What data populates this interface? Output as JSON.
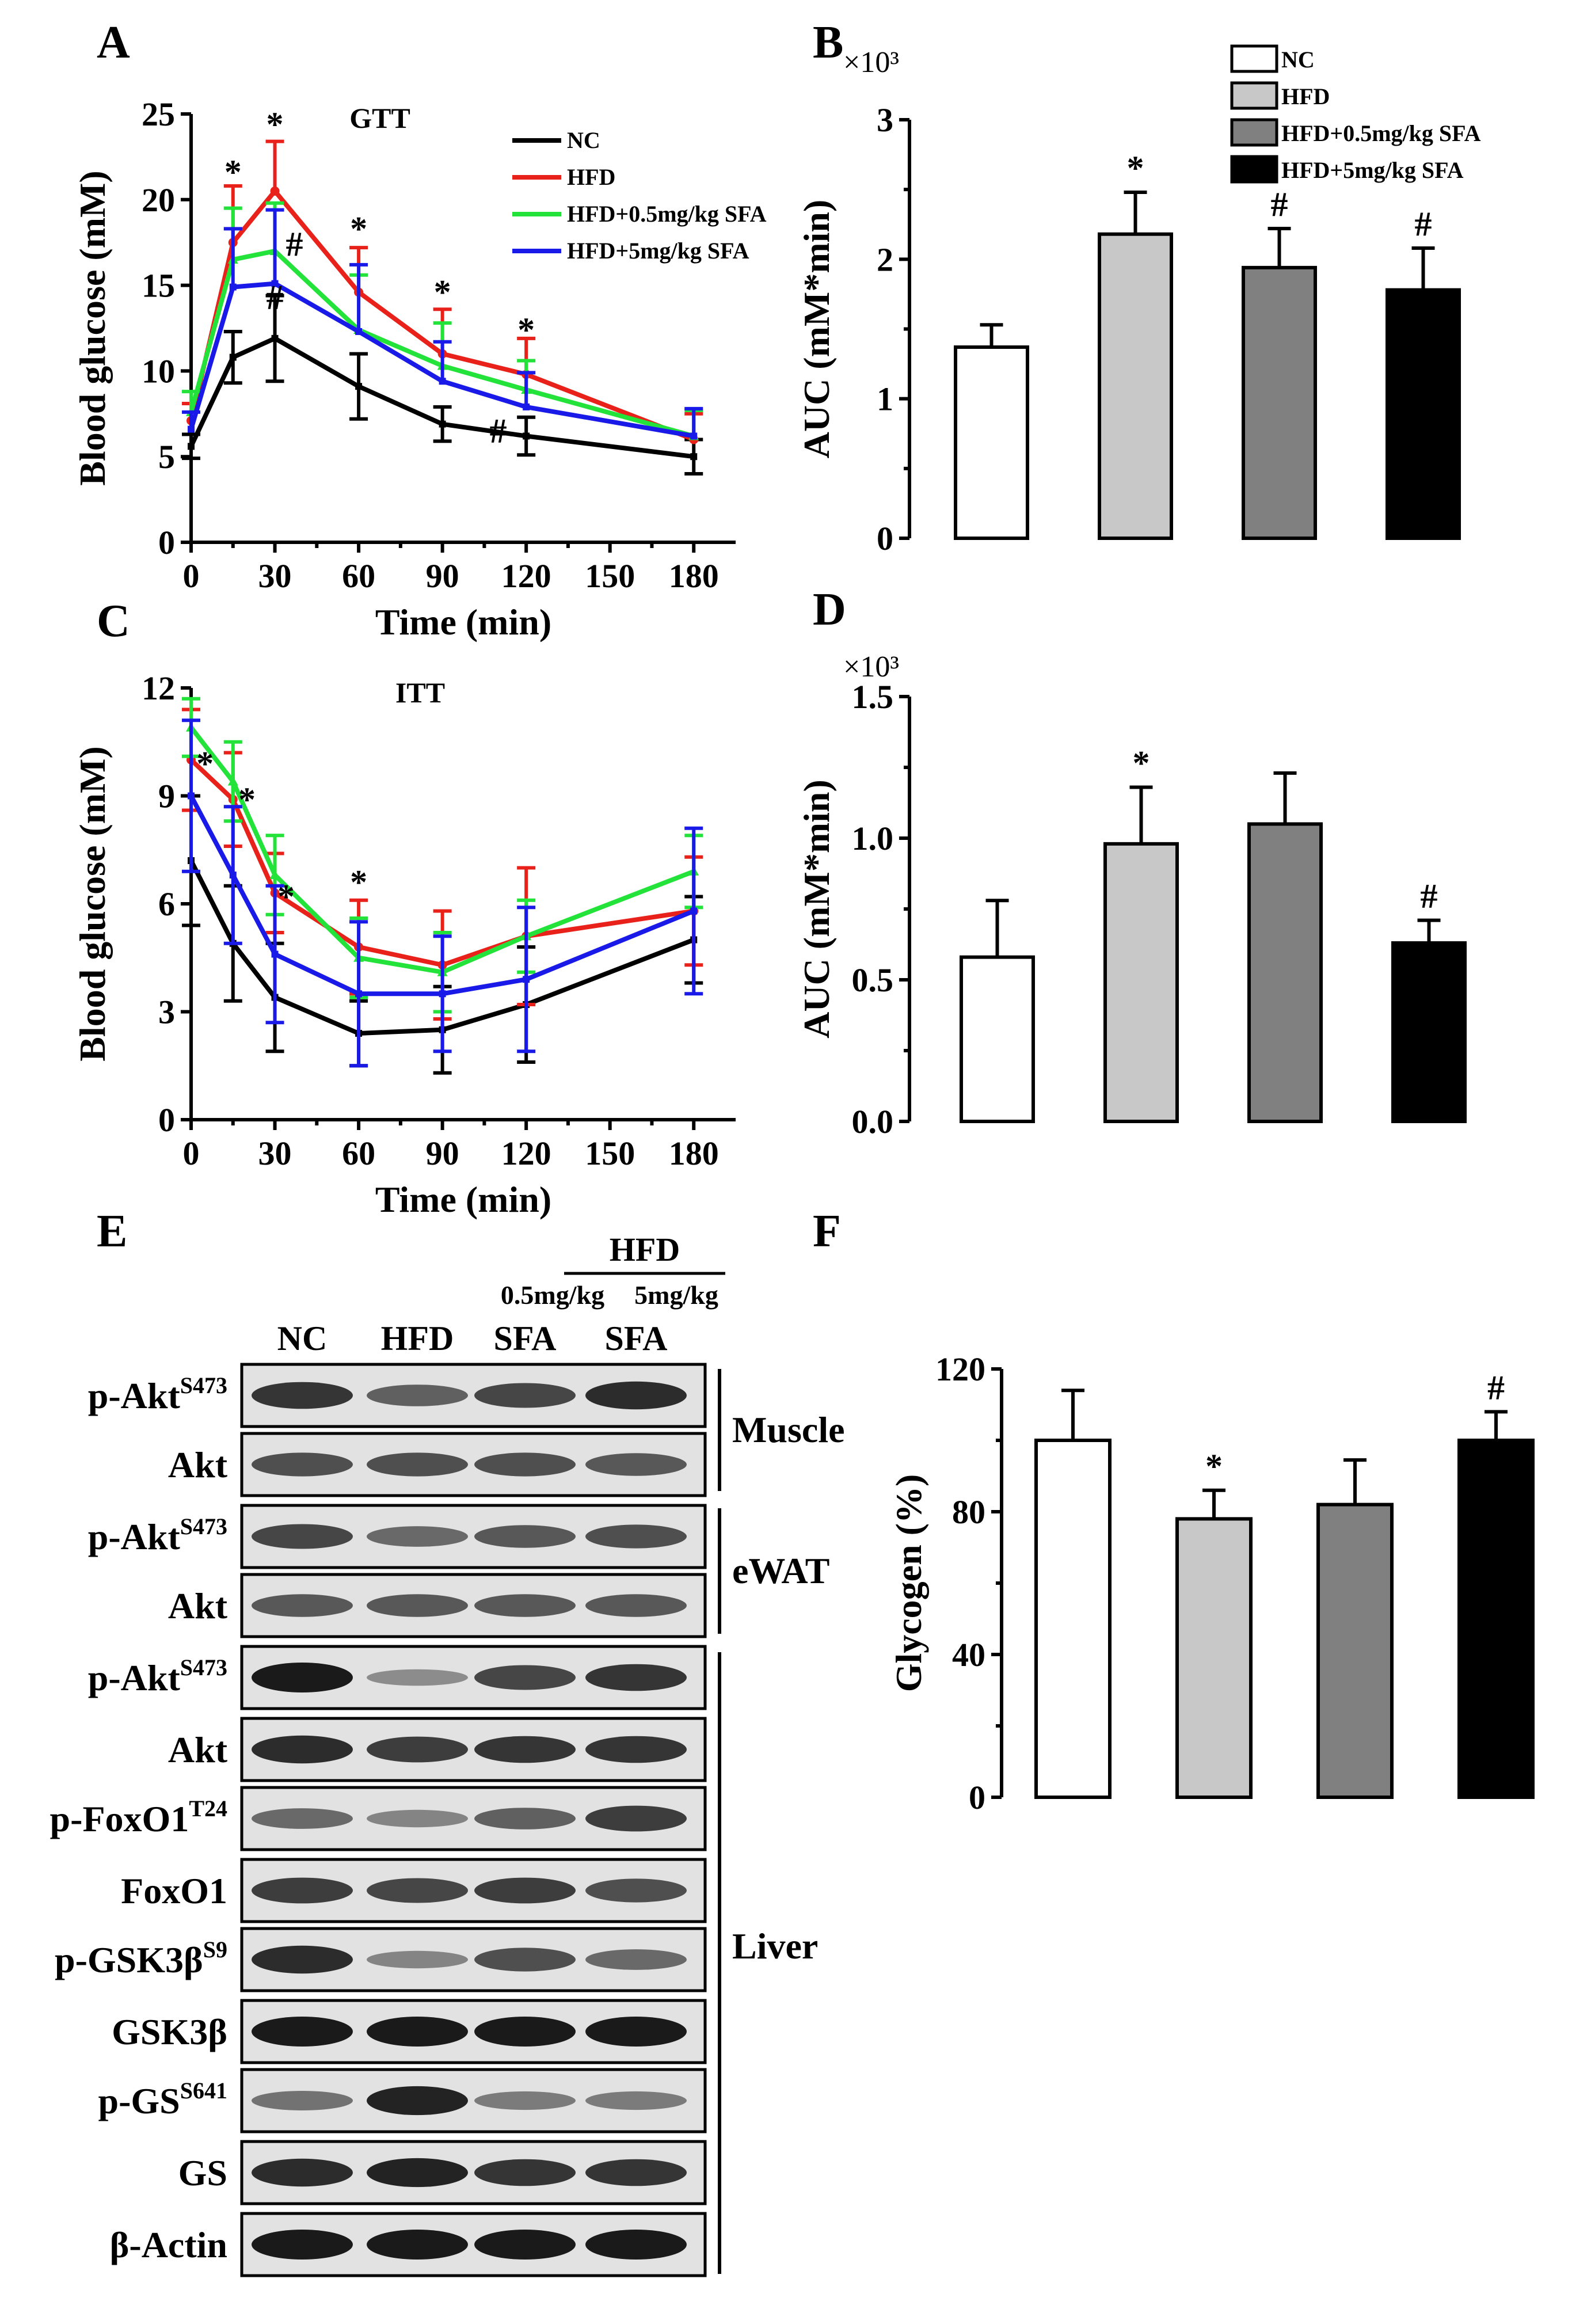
{
  "colors": {
    "NC": "#000000",
    "HFD": "#e8221b",
    "HFD_low": "#23e23a",
    "HFD_high": "#1a1ae8",
    "bar_NC": "#ffffff",
    "bar_HFD": "#c8c8c8",
    "bar_low": "#808080",
    "bar_high": "#000000"
  },
  "panels": {
    "A": {
      "letter": "A",
      "title": "GTT"
    },
    "B": {
      "letter": "B",
      "exponent": "×10³"
    },
    "C": {
      "letter": "C",
      "title": "ITT"
    },
    "D": {
      "letter": "D",
      "exponent": "×10³"
    },
    "E": {
      "letter": "E"
    },
    "F": {
      "letter": "F"
    }
  },
  "chart_data": [
    {
      "id": "A",
      "type": "line",
      "title": "GTT",
      "xlabel": "Time (min)",
      "ylabel": "Blood glucose (mM)",
      "xlim": [
        0,
        195
      ],
      "ylim": [
        0,
        25
      ],
      "xticks": [
        "0",
        "30",
        "60",
        "90",
        "120",
        "150",
        "180"
      ],
      "yticks": [
        "0",
        "5",
        "10",
        "15",
        "20",
        "25"
      ],
      "x": [
        0,
        15,
        30,
        60,
        90,
        120,
        180
      ],
      "series": [
        {
          "name": "NC",
          "color": "#000000",
          "values": [
            5.6,
            10.8,
            11.9,
            9.1,
            6.9,
            6.2,
            5.0
          ],
          "err": [
            0.7,
            1.5,
            2.5,
            1.9,
            1.0,
            1.1,
            1.0
          ]
        },
        {
          "name": "HFD",
          "color": "#e8221b",
          "values": [
            7.1,
            17.5,
            20.5,
            14.6,
            11.0,
            9.8,
            6.0
          ],
          "err": [
            1.0,
            3.3,
            2.9,
            2.6,
            2.6,
            2.1,
            1.5
          ]
        },
        {
          "name": "HFD+0.5mg/kg SFA",
          "color": "#23e23a",
          "values": [
            7.6,
            16.5,
            17.0,
            12.4,
            10.3,
            8.9,
            6.2
          ],
          "err": [
            1.2,
            3.0,
            2.8,
            3.2,
            2.5,
            1.7,
            1.5
          ]
        },
        {
          "name": "HFD+5mg/kg SFA",
          "color": "#1a1ae8",
          "values": [
            6.6,
            14.9,
            15.1,
            12.3,
            9.4,
            7.9,
            6.2
          ],
          "err": [
            1.0,
            3.4,
            4.3,
            3.9,
            2.3,
            2.0,
            1.6
          ]
        }
      ],
      "annotations": [
        {
          "x": 15,
          "y": 21.6,
          "text": "*"
        },
        {
          "x": 30,
          "y": 24.4,
          "text": "*"
        },
        {
          "x": 60,
          "y": 18.3,
          "text": "*"
        },
        {
          "x": 90,
          "y": 14.6,
          "text": "*"
        },
        {
          "x": 120,
          "y": 12.4,
          "text": "*"
        },
        {
          "x": 30,
          "y": 14.3,
          "text": "#"
        },
        {
          "x": 37,
          "y": 17.4,
          "text": "#"
        },
        {
          "x": 110,
          "y": 6.5,
          "text": "#"
        }
      ],
      "legend": [
        "NC",
        "HFD",
        "HFD+0.5mg/kg SFA",
        "HFD+5mg/kg SFA"
      ],
      "legend_position": "top-right"
    },
    {
      "id": "B",
      "type": "bar",
      "ylabel": "AUC (mM*min)",
      "ylim": [
        0,
        3
      ],
      "yticks": [
        "0",
        "1",
        "2",
        "3"
      ],
      "categories": [
        "NC",
        "HFD",
        "HFD+0.5mg/kg SFA",
        "HFD+5mg/kg SFA"
      ],
      "values": [
        1.37,
        2.18,
        1.94,
        1.78
      ],
      "err": [
        0.16,
        0.3,
        0.28,
        0.3
      ],
      "annotations": [
        "",
        "*",
        "#",
        "#"
      ],
      "legend": [
        "NC",
        "HFD",
        "HFD+0.5mg/kg SFA",
        "HFD+5mg/kg SFA"
      ],
      "legend_position": "top-right"
    },
    {
      "id": "C",
      "type": "line",
      "title": "ITT",
      "xlabel": "Time (min)",
      "ylabel": "Blood glucose (mM)",
      "xlim": [
        0,
        195
      ],
      "ylim": [
        0,
        12
      ],
      "xticks": [
        "0",
        "30",
        "60",
        "90",
        "120",
        "150",
        "180"
      ],
      "yticks": [
        "0",
        "3",
        "6",
        "9",
        "12"
      ],
      "x": [
        0,
        15,
        30,
        60,
        90,
        120,
        180
      ],
      "series": [
        {
          "name": "NC",
          "color": "#000000",
          "values": [
            7.2,
            4.9,
            3.4,
            2.4,
            2.5,
            3.2,
            5.0
          ],
          "err": [
            1.8,
            1.6,
            1.5,
            0.9,
            1.2,
            1.6,
            1.2
          ]
        },
        {
          "name": "HFD",
          "color": "#e8221b",
          "values": [
            10.0,
            8.9,
            6.3,
            4.8,
            4.3,
            5.1,
            5.8
          ],
          "err": [
            1.4,
            1.3,
            1.1,
            1.3,
            1.5,
            1.9,
            1.5
          ]
        },
        {
          "name": "HFD+0.5mg/kg SFA",
          "color": "#23e23a",
          "values": [
            10.9,
            9.4,
            6.8,
            4.5,
            4.1,
            5.1,
            6.9
          ],
          "err": [
            0.8,
            1.1,
            1.1,
            1.1,
            1.1,
            1.0,
            1.0
          ]
        },
        {
          "name": "HFD+5mg/kg SFA",
          "color": "#1a1ae8",
          "values": [
            9.0,
            6.8,
            4.6,
            3.5,
            3.5,
            3.9,
            5.8
          ],
          "err": [
            2.1,
            1.9,
            1.9,
            2.0,
            1.6,
            2.0,
            2.3
          ]
        }
      ],
      "annotations": [
        {
          "x": 5,
          "y": 9.9,
          "text": "*"
        },
        {
          "x": 20,
          "y": 8.9,
          "text": "*"
        },
        {
          "x": 34,
          "y": 6.2,
          "text": "*"
        },
        {
          "x": 60,
          "y": 6.6,
          "text": "*"
        }
      ]
    },
    {
      "id": "D",
      "type": "bar",
      "ylabel": "AUC (mM*min)",
      "ylim": [
        0,
        1.5
      ],
      "yticks": [
        "0.0",
        "0.5",
        "1.0",
        "1.5"
      ],
      "categories": [
        "NC",
        "HFD",
        "HFD+0.5mg/kg SFA",
        "HFD+5mg/kg SFA"
      ],
      "values": [
        0.58,
        0.98,
        1.05,
        0.63
      ],
      "err": [
        0.2,
        0.2,
        0.18,
        0.08
      ],
      "annotations": [
        "",
        "*",
        "",
        "#"
      ]
    },
    {
      "id": "F",
      "type": "bar",
      "ylabel": "Glycogen (%)",
      "ylim": [
        0,
        120
      ],
      "yticks": [
        "0",
        "40",
        "80",
        "120"
      ],
      "categories": [
        "NC",
        "HFD",
        "HFD+0.5mg/kg SFA",
        "HFD+5mg/kg SFA"
      ],
      "values": [
        100,
        78,
        82,
        100
      ],
      "err": [
        14,
        8,
        12.5,
        8
      ],
      "annotations": [
        "",
        "*",
        "",
        "#"
      ]
    }
  ],
  "blot": {
    "header": {
      "group": "HFD",
      "dose_low": "0.5mg/kg",
      "dose_high": "5mg/kg",
      "lanes": [
        "NC",
        "HFD",
        "SFA",
        "SFA"
      ]
    },
    "rows": [
      {
        "base": "p-Akt",
        "sup": "S473",
        "intensity": [
          0.85,
          0.6,
          0.75,
          0.9
        ]
      },
      {
        "base": "Akt",
        "sup": "",
        "intensity": [
          0.7,
          0.7,
          0.7,
          0.65
        ]
      },
      {
        "base": "p-Akt",
        "sup": "S473",
        "intensity": [
          0.75,
          0.55,
          0.65,
          0.7
        ]
      },
      {
        "base": "Akt",
        "sup": "",
        "intensity": [
          0.65,
          0.65,
          0.65,
          0.65
        ]
      },
      {
        "base": "p-Akt",
        "sup": "S473",
        "intensity": [
          1.0,
          0.35,
          0.75,
          0.85
        ]
      },
      {
        "base": "Akt",
        "sup": "",
        "intensity": [
          0.9,
          0.8,
          0.85,
          0.85
        ]
      },
      {
        "base": "p-FoxO1",
        "sup": "T24",
        "intensity": [
          0.55,
          0.4,
          0.6,
          0.8
        ]
      },
      {
        "base": "FoxO1",
        "sup": "",
        "intensity": [
          0.8,
          0.75,
          0.8,
          0.7
        ]
      },
      {
        "base": "p-GSK3β",
        "sup": "S9",
        "intensity": [
          0.9,
          0.4,
          0.7,
          0.55
        ]
      },
      {
        "base": "GSK3β",
        "sup": "",
        "intensity": [
          1.0,
          1.0,
          1.0,
          1.0
        ]
      },
      {
        "base": "p-GS",
        "sup": "S641",
        "intensity": [
          0.5,
          0.95,
          0.45,
          0.45
        ]
      },
      {
        "base": "GS",
        "sup": "",
        "intensity": [
          0.9,
          0.95,
          0.85,
          0.85
        ]
      },
      {
        "base": "β-Actin",
        "sup": "",
        "intensity": [
          1.0,
          1.0,
          1.0,
          1.0
        ]
      }
    ],
    "tissues": [
      "Muscle",
      "eWAT",
      "Liver"
    ]
  }
}
